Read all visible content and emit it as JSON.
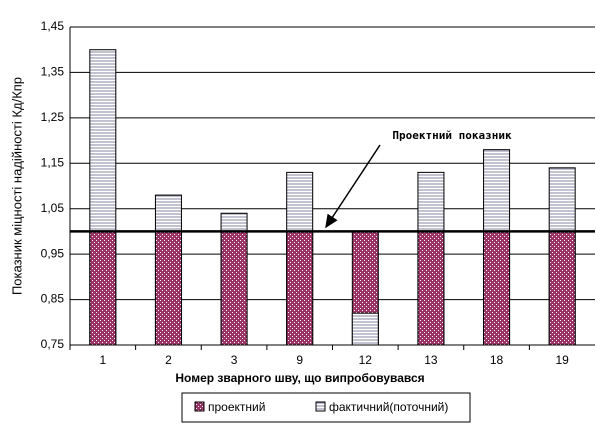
{
  "chart_data": {
    "type": "bar",
    "x_label": "Номер зварного шву, що випробовувався",
    "y_label": "Показник міцності надійності Кд/Кпр",
    "categories": [
      "1",
      "2",
      "3",
      "9",
      "12",
      "13",
      "18",
      "19"
    ],
    "series": [
      {
        "name": "проектний",
        "color": "#993366",
        "values": [
          1.0,
          1.0,
          1.0,
          1.0,
          1.0,
          1.0,
          1.0,
          1.0
        ]
      },
      {
        "name": "фактичний(поточний)",
        "color": "#ffffff",
        "values": [
          1.4,
          1.08,
          1.04,
          1.13,
          0.82,
          1.13,
          1.18,
          1.14
        ]
      }
    ],
    "reference_line": 1.0,
    "annotation": "Проектний показник",
    "ylim": [
      0.75,
      1.45
    ],
    "yticks": [
      {
        "value": 0.75,
        "label": "0,75"
      },
      {
        "value": 0.85,
        "label": "0,85"
      },
      {
        "value": 0.95,
        "label": "0,95"
      },
      {
        "value": 1.05,
        "label": "1,05"
      },
      {
        "value": 1.15,
        "label": "1,15"
      },
      {
        "value": 1.25,
        "label": "1,25"
      },
      {
        "value": 1.35,
        "label": "1,35"
      },
      {
        "value": 1.45,
        "label": "1,45"
      }
    ],
    "grid": true,
    "legend": "bottom"
  }
}
